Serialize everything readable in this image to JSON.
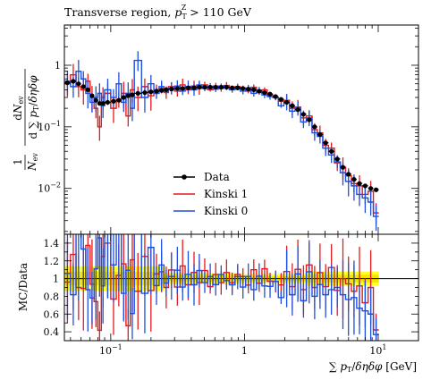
{
  "chart_data": {
    "type": "line",
    "title": "Transverse region, p_T^Z > 110 GeV",
    "title_parts": {
      "main": "Transverse region, ",
      "sym": "p",
      "sub": "T",
      "sup": "Z",
      "tail": " > 110 GeV"
    },
    "xlabel": "∑ pT/δηδφ [GeV]",
    "ylabel_upper": "1/N_ev dN_ev/d∑pT/δηδφ",
    "ylabel_lower": "MC/Data",
    "x_scale": "log",
    "y_scale_upper": "log",
    "xlim": [
      0.045,
      20
    ],
    "ylim_upper": [
      0.0018,
      4.5
    ],
    "ylim_lower": [
      0.3,
      1.5
    ],
    "x_ticks": [
      {
        "value": 0.1,
        "label": "10",
        "exp": "−1"
      },
      {
        "value": 1,
        "label": "1",
        "exp": ""
      },
      {
        "value": 10,
        "label": "10",
        "exp": "1"
      }
    ],
    "y_ticks_upper": [
      {
        "value": 1,
        "label": "1",
        "exp": ""
      },
      {
        "value": 0.1,
        "label": "10",
        "exp": "−1"
      },
      {
        "value": 0.01,
        "label": "10",
        "exp": "−2"
      }
    ],
    "y_ticks_lower": [
      {
        "value": 1.4,
        "label": "1.4"
      },
      {
        "value": 1.2,
        "label": "1.2"
      },
      {
        "value": 1.0,
        "label": "1"
      },
      {
        "value": 0.8,
        "label": "0.8"
      },
      {
        "value": 0.6,
        "label": "0.6"
      },
      {
        "value": 0.4,
        "label": "0.4"
      }
    ],
    "legend_position": "center-left",
    "bin_edges": [
      0.045,
      0.05,
      0.055,
      0.06,
      0.065,
      0.07,
      0.075,
      0.08,
      0.085,
      0.09,
      0.1,
      0.11,
      0.12,
      0.13,
      0.14,
      0.15,
      0.17,
      0.19,
      0.21,
      0.23,
      0.25,
      0.27,
      0.3,
      0.33,
      0.36,
      0.4,
      0.44,
      0.48,
      0.53,
      0.58,
      0.64,
      0.7,
      0.77,
      0.85,
      0.93,
      1.02,
      1.12,
      1.23,
      1.35,
      1.48,
      1.63,
      1.79,
      1.97,
      2.17,
      2.39,
      2.63,
      2.9,
      3.2,
      3.5,
      3.85,
      4.25,
      4.7,
      5.2,
      5.7,
      6.3,
      6.9,
      7.6,
      8.4,
      9.2,
      10.1
    ],
    "series": [
      {
        "name": "Data",
        "color": "#000000",
        "style": "points",
        "values": [
          0.52,
          0.55,
          0.5,
          0.45,
          0.4,
          0.32,
          0.27,
          0.24,
          0.24,
          0.25,
          0.26,
          0.27,
          0.3,
          0.32,
          0.33,
          0.35,
          0.36,
          0.37,
          0.38,
          0.39,
          0.4,
          0.41,
          0.42,
          0.42,
          0.43,
          0.43,
          0.44,
          0.44,
          0.44,
          0.44,
          0.44,
          0.44,
          0.43,
          0.43,
          0.42,
          0.41,
          0.4,
          0.38,
          0.36,
          0.34,
          0.31,
          0.28,
          0.25,
          0.22,
          0.19,
          0.16,
          0.13,
          0.1,
          0.075,
          0.055,
          0.04,
          0.03,
          0.022,
          0.017,
          0.014,
          0.012,
          0.011,
          0.01,
          0.0095
        ]
      },
      {
        "name": "Kinski 1",
        "color": "#e41a1c",
        "style": "step",
        "values": [
          0.5,
          0.7,
          0.45,
          0.4,
          0.55,
          0.3,
          0.2,
          0.1,
          0.3,
          0.35,
          0.2,
          0.28,
          0.35,
          0.15,
          0.4,
          0.3,
          0.45,
          0.32,
          0.4,
          0.42,
          0.36,
          0.45,
          0.38,
          0.48,
          0.4,
          0.46,
          0.42,
          0.48,
          0.4,
          0.46,
          0.42,
          0.47,
          0.41,
          0.45,
          0.43,
          0.38,
          0.44,
          0.36,
          0.4,
          0.33,
          0.3,
          0.26,
          0.27,
          0.2,
          0.21,
          0.14,
          0.15,
          0.09,
          0.08,
          0.05,
          0.045,
          0.026,
          0.022,
          0.016,
          0.012,
          0.011,
          0.008,
          0.009,
          0.004
        ]
      },
      {
        "name": "Kinski 0",
        "color": "#1f4fe0",
        "style": "step",
        "values": [
          0.55,
          0.45,
          0.8,
          0.6,
          0.35,
          0.25,
          0.3,
          0.35,
          0.22,
          0.4,
          0.3,
          0.5,
          0.25,
          0.35,
          0.2,
          1.2,
          0.3,
          0.5,
          0.35,
          0.45,
          0.38,
          0.42,
          0.46,
          0.38,
          0.45,
          0.4,
          0.48,
          0.42,
          0.45,
          0.41,
          0.46,
          0.43,
          0.4,
          0.44,
          0.38,
          0.42,
          0.35,
          0.39,
          0.33,
          0.31,
          0.3,
          0.22,
          0.25,
          0.18,
          0.2,
          0.12,
          0.14,
          0.08,
          0.07,
          0.045,
          0.035,
          0.027,
          0.018,
          0.013,
          0.011,
          0.008,
          0.007,
          0.006,
          0.0035
        ]
      }
    ]
  }
}
